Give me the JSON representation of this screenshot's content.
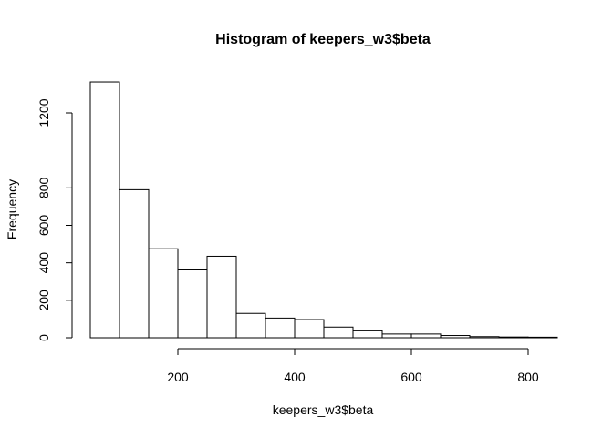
{
  "chart_data": {
    "type": "bar",
    "title": "Histogram of keepers_w3$beta",
    "xlabel": "keepers_w3$beta",
    "ylabel": "Frequency",
    "bin_edges": [
      50,
      100,
      150,
      200,
      250,
      300,
      350,
      400,
      450,
      500,
      550,
      600,
      650,
      700,
      750,
      800,
      850
    ],
    "values": [
      1365,
      790,
      475,
      362,
      435,
      130,
      105,
      97,
      57,
      37,
      20,
      20,
      12,
      6,
      4,
      3
    ],
    "xlim": [
      50,
      850
    ],
    "ylim": [
      0,
      1370
    ],
    "xticks": [
      200,
      400,
      600,
      800
    ],
    "yticks": [
      0,
      200,
      400,
      600,
      800,
      1200
    ],
    "grid": false,
    "colors": {
      "bar_fill": "#ffffff",
      "bar_stroke": "#000000"
    }
  }
}
